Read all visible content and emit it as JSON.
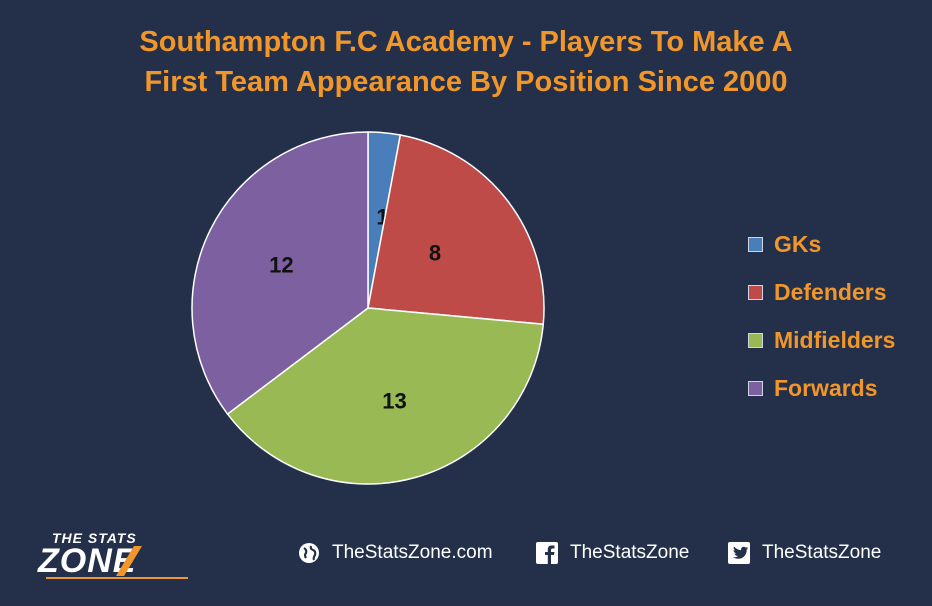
{
  "chart_data": {
    "type": "pie",
    "title": "Southampton F.C Academy - Players To Make A First Team Appearance By Position Since 2000",
    "title_lines": [
      "Southampton F.C Academy - Players To Make A",
      "First Team Appearance By Position Since 2000"
    ],
    "categories": [
      "GKs",
      "Defenders",
      "Midfielders",
      "Forwards"
    ],
    "values": [
      1,
      8,
      13,
      12
    ],
    "colors": [
      "#4a7ebb",
      "#be4b48",
      "#98b954",
      "#7d60a0"
    ],
    "legend_position": "right",
    "start_angle": "12 o'clock",
    "direction": "clockwise"
  },
  "branding": {
    "logo_top": "THE STATS",
    "logo_bottom": "ZONE",
    "website": "TheStatsZone.com",
    "facebook": "TheStatsZone",
    "twitter": "TheStatsZone",
    "website_icon": "globe-icon",
    "facebook_icon": "facebook-icon",
    "twitter_icon": "twitter-icon"
  }
}
